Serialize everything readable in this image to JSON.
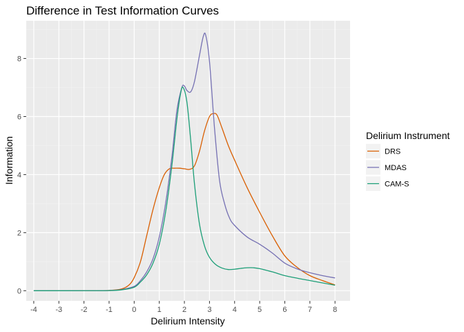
{
  "chart_data": {
    "type": "line",
    "title": "Difference in Test Information Curves",
    "xlabel": "Delirium Intensity",
    "ylabel": "Information",
    "xlim": [
      -4.3,
      8.6
    ],
    "ylim": [
      -0.35,
      9.3
    ],
    "x_ticks": [
      -4,
      -3,
      -2,
      -1,
      0,
      1,
      2,
      3,
      4,
      5,
      6,
      7,
      8
    ],
    "x_tick_labels": [
      "-4",
      "-3",
      "-2",
      "-1",
      "0",
      "1",
      "2",
      "3",
      "4",
      "5",
      "6",
      "7",
      "8"
    ],
    "y_ticks": [
      0,
      2,
      4,
      6,
      8
    ],
    "y_tick_labels": [
      "0",
      "2",
      "4",
      "6",
      "8"
    ],
    "grid": true,
    "legend": {
      "title": "Delirium Instrument",
      "position": "right"
    },
    "series": [
      {
        "name": "DRS",
        "color": "#d95f02",
        "points": [
          [
            -4,
            0
          ],
          [
            -2,
            0.002
          ],
          [
            -1,
            0.01
          ],
          [
            -0.5,
            0.06
          ],
          [
            -0.2,
            0.2
          ],
          [
            0,
            0.45
          ],
          [
            0.25,
            1.0
          ],
          [
            0.5,
            1.9
          ],
          [
            0.75,
            2.8
          ],
          [
            1.0,
            3.55
          ],
          [
            1.2,
            4.0
          ],
          [
            1.4,
            4.2
          ],
          [
            1.6,
            4.22
          ],
          [
            1.8,
            4.22
          ],
          [
            2.0,
            4.2
          ],
          [
            2.2,
            4.18
          ],
          [
            2.4,
            4.3
          ],
          [
            2.6,
            4.8
          ],
          [
            2.8,
            5.5
          ],
          [
            3.0,
            6.0
          ],
          [
            3.15,
            6.1
          ],
          [
            3.3,
            6.05
          ],
          [
            3.5,
            5.6
          ],
          [
            3.75,
            5.0
          ],
          [
            4.0,
            4.5
          ],
          [
            4.5,
            3.55
          ],
          [
            5.0,
            2.7
          ],
          [
            5.5,
            1.9
          ],
          [
            6.0,
            1.2
          ],
          [
            6.5,
            0.8
          ],
          [
            7.0,
            0.52
          ],
          [
            7.5,
            0.35
          ],
          [
            8.0,
            0.2
          ]
        ]
      },
      {
        "name": "MDAS",
        "color": "#7570b3",
        "points": [
          [
            -4,
            0
          ],
          [
            -2,
            0.001
          ],
          [
            -1,
            0.008
          ],
          [
            -0.5,
            0.04
          ],
          [
            0,
            0.15
          ],
          [
            0.25,
            0.35
          ],
          [
            0.5,
            0.65
          ],
          [
            0.75,
            1.1
          ],
          [
            1.0,
            1.85
          ],
          [
            1.25,
            3.0
          ],
          [
            1.5,
            4.6
          ],
          [
            1.7,
            6.2
          ],
          [
            1.9,
            7.0
          ],
          [
            2.0,
            7.05
          ],
          [
            2.1,
            6.9
          ],
          [
            2.25,
            6.85
          ],
          [
            2.4,
            7.2
          ],
          [
            2.6,
            8.1
          ],
          [
            2.75,
            8.75
          ],
          [
            2.85,
            8.8
          ],
          [
            3.0,
            7.9
          ],
          [
            3.2,
            5.6
          ],
          [
            3.4,
            3.8
          ],
          [
            3.6,
            3.0
          ],
          [
            3.8,
            2.5
          ],
          [
            4.0,
            2.25
          ],
          [
            4.5,
            1.85
          ],
          [
            5.0,
            1.6
          ],
          [
            5.5,
            1.3
          ],
          [
            6.0,
            0.95
          ],
          [
            6.5,
            0.75
          ],
          [
            7.0,
            0.62
          ],
          [
            7.5,
            0.52
          ],
          [
            8.0,
            0.44
          ]
        ]
      },
      {
        "name": "CAM-S",
        "color": "#1b9e77",
        "points": [
          [
            -4,
            0
          ],
          [
            -2,
            0.001
          ],
          [
            -1,
            0.005
          ],
          [
            -0.5,
            0.03
          ],
          [
            0,
            0.12
          ],
          [
            0.25,
            0.3
          ],
          [
            0.5,
            0.55
          ],
          [
            0.75,
            0.95
          ],
          [
            1.0,
            1.6
          ],
          [
            1.25,
            2.7
          ],
          [
            1.5,
            4.3
          ],
          [
            1.7,
            5.9
          ],
          [
            1.85,
            6.8
          ],
          [
            1.95,
            7.0
          ],
          [
            2.1,
            6.5
          ],
          [
            2.25,
            5.2
          ],
          [
            2.4,
            3.7
          ],
          [
            2.6,
            2.3
          ],
          [
            2.8,
            1.55
          ],
          [
            3.0,
            1.15
          ],
          [
            3.25,
            0.9
          ],
          [
            3.5,
            0.78
          ],
          [
            3.75,
            0.73
          ],
          [
            4.0,
            0.74
          ],
          [
            4.25,
            0.77
          ],
          [
            4.5,
            0.79
          ],
          [
            4.75,
            0.79
          ],
          [
            5.0,
            0.76
          ],
          [
            5.5,
            0.65
          ],
          [
            6.0,
            0.52
          ],
          [
            6.5,
            0.43
          ],
          [
            7.0,
            0.35
          ],
          [
            7.5,
            0.27
          ],
          [
            8.0,
            0.19
          ]
        ]
      }
    ]
  }
}
